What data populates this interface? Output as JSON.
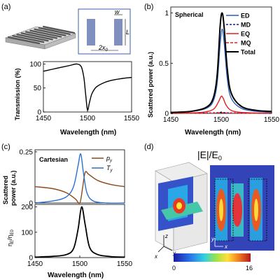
{
  "panels": {
    "a": {
      "letter": "(a)",
      "inset_labels": {
        "w": "w",
        "L": "L",
        "gap": "2x",
        "gap_sub": "0"
      },
      "ylabel": "Transmission (%)",
      "xlabel": "Wavelength (nm)",
      "xticks": [
        "1450",
        "1500",
        "1550"
      ],
      "yticks": [
        "0",
        "50",
        "100"
      ]
    },
    "b": {
      "letter": "(b)",
      "title": "Spherical",
      "ylabel": "Scattered power (a.u.)",
      "xlabel": "Wavelength (nm)",
      "xticks": [
        "1450",
        "1500",
        "1550"
      ],
      "yticks": [
        "0",
        "0.5",
        "1"
      ],
      "legend": [
        "ED",
        "MD",
        "EQ",
        "MQ",
        "Total"
      ]
    },
    "c": {
      "letter": "(c)",
      "title": "Cartesian",
      "ylabel_top_1": "Scattered",
      "ylabel_top_2": "power (a.u.)",
      "ylabel_bottom": "η",
      "ylabel_bottom_sub": "E",
      "ylabel_bottom_mid": "/η",
      "ylabel_bottom_sub2": "E0",
      "xlabel": "Wavelength (nm)",
      "xticks": [
        "1450",
        "1500",
        "1550"
      ],
      "yticks_top": [
        "0",
        "0.25"
      ],
      "yticks_bottom": [
        "0",
        "100",
        "200"
      ],
      "legend": [
        {
          "main": "p",
          "sub": "y"
        },
        {
          "main": "T",
          "sub": "y"
        }
      ]
    },
    "d": {
      "letter": "(d)",
      "title": "|E|/E",
      "title_sub": "0",
      "axes": {
        "z": "z",
        "x": "x",
        "y": "y",
        "x2": "x",
        "y2": "y"
      },
      "colorbar_min": "0",
      "colorbar_max": "16"
    }
  },
  "chart_data": [
    {
      "type": "line",
      "panel": "a",
      "xlabel": "Wavelength (nm)",
      "ylabel": "Transmission (%)",
      "xlim": [
        1450,
        1550
      ],
      "ylim": [
        0,
        100
      ],
      "series": [
        {
          "color": "#000000",
          "x": [
            1450,
            1460,
            1470,
            1480,
            1488,
            1493,
            1496,
            1498,
            1500,
            1502,
            1505,
            1510,
            1520,
            1530,
            1540,
            1550
          ],
          "y": [
            85,
            89,
            93,
            97,
            100,
            94,
            70,
            35,
            4,
            18,
            38,
            52,
            62,
            67,
            70,
            72
          ]
        }
      ]
    },
    {
      "type": "line",
      "panel": "b",
      "title": "Spherical",
      "xlabel": "Wavelength (nm)",
      "ylabel": "Scattered power (a.u.)",
      "xlim": [
        1450,
        1550
      ],
      "ylim": [
        0,
        1.05
      ],
      "series": [
        {
          "name": "ED",
          "color": "#2b5fb4",
          "dash": "",
          "x": [
            1450,
            1470,
            1485,
            1492,
            1496,
            1499,
            1501,
            1503,
            1506,
            1510,
            1520,
            1535,
            1550
          ],
          "y": [
            0.01,
            0.02,
            0.05,
            0.12,
            0.3,
            0.7,
            0.84,
            0.7,
            0.35,
            0.15,
            0.05,
            0.02,
            0.01
          ]
        },
        {
          "name": "MD",
          "color": "#1a1a8c",
          "dash": "3,2",
          "x": [
            1450,
            1490,
            1500,
            1510,
            1550
          ],
          "y": [
            0.0,
            0.005,
            0.01,
            0.005,
            0.0
          ]
        },
        {
          "name": "EQ",
          "color": "#e02020",
          "dash": "",
          "x": [
            1450,
            1480,
            1492,
            1497,
            1500,
            1502,
            1505,
            1510,
            1520,
            1550
          ],
          "y": [
            0.0,
            0.01,
            0.04,
            0.11,
            0.17,
            0.15,
            0.08,
            0.03,
            0.01,
            0.0
          ]
        },
        {
          "name": "MQ",
          "color": "#e02020",
          "dash": "4,2",
          "x": [
            1450,
            1490,
            1500,
            1510,
            1550
          ],
          "y": [
            0.0,
            0.003,
            0.006,
            0.003,
            0.0
          ]
        },
        {
          "name": "Total",
          "color": "#000000",
          "dash": "",
          "x": [
            1450,
            1470,
            1485,
            1492,
            1496,
            1499,
            1501,
            1503,
            1506,
            1510,
            1520,
            1535,
            1550
          ],
          "y": [
            0.01,
            0.02,
            0.06,
            0.15,
            0.38,
            0.88,
            1.0,
            0.85,
            0.45,
            0.2,
            0.07,
            0.03,
            0.02
          ]
        }
      ]
    },
    {
      "type": "line",
      "panel": "c-top",
      "title": "Cartesian",
      "xlim": [
        1450,
        1550
      ],
      "ylim": [
        0,
        0.25
      ],
      "series": [
        {
          "name": "p_y",
          "color": "#8b4a1c",
          "x": [
            1450,
            1470,
            1485,
            1495,
            1500,
            1503,
            1506,
            1510,
            1520,
            1535,
            1550
          ],
          "y": [
            0.08,
            0.07,
            0.05,
            0.02,
            0.0,
            0.07,
            0.15,
            0.14,
            0.11,
            0.09,
            0.08
          ]
        },
        {
          "name": "T_y",
          "color": "#2b6fd1",
          "x": [
            1450,
            1470,
            1485,
            1493,
            1498,
            1501,
            1504,
            1508,
            1515,
            1530,
            1550
          ],
          "y": [
            0.0,
            0.01,
            0.03,
            0.08,
            0.18,
            0.24,
            0.15,
            0.05,
            0.01,
            0.0,
            0.0
          ]
        }
      ]
    },
    {
      "type": "line",
      "panel": "c-bottom",
      "xlabel": "Wavelength (nm)",
      "xlim": [
        1450,
        1550
      ],
      "ylim": [
        0,
        200
      ],
      "series": [
        {
          "color": "#000000",
          "x": [
            1450,
            1470,
            1485,
            1493,
            1498,
            1502,
            1506,
            1511,
            1520,
            1535,
            1550
          ],
          "y": [
            2,
            5,
            12,
            35,
            110,
            200,
            130,
            40,
            12,
            4,
            2
          ]
        }
      ]
    }
  ]
}
